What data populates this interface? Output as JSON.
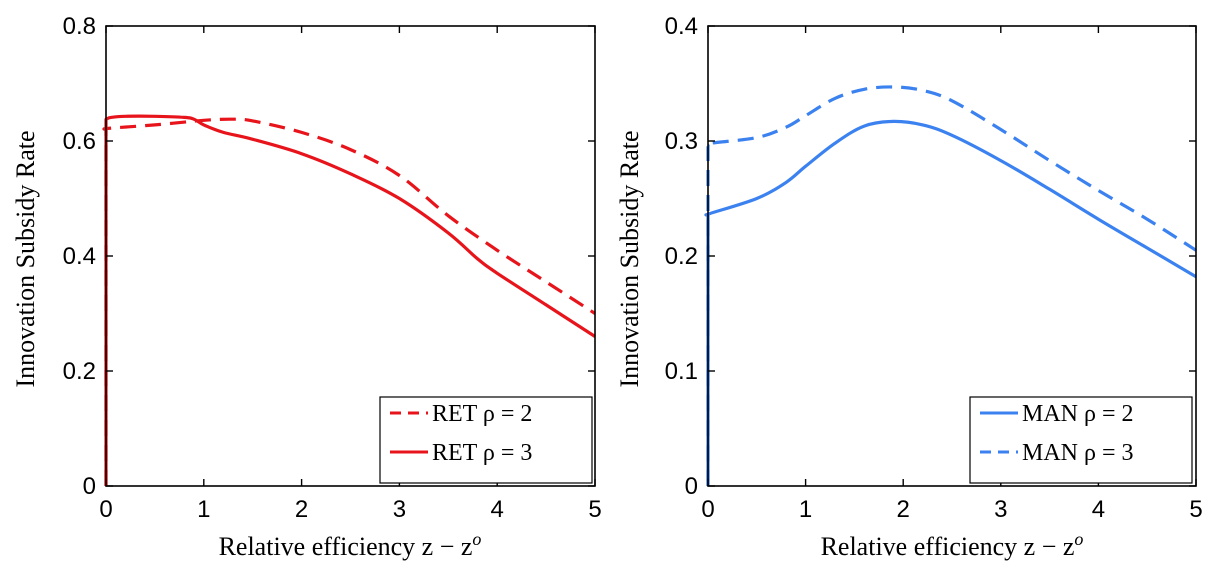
{
  "chart_data": [
    {
      "type": "line",
      "ylabel": "Innovation Subsidy Rate",
      "xlabel": "Relative efficiency z − z",
      "xlabel_sup": "o",
      "xlim": [
        0,
        5
      ],
      "ylim": [
        0,
        0.8
      ],
      "xticks": [
        "0",
        "1",
        "2",
        "3",
        "4",
        "5"
      ],
      "yticks": [
        "0",
        "0.2",
        "0.4",
        "0.6",
        "0.8"
      ],
      "grid": false,
      "legend_position": "bottom-right",
      "series": [
        {
          "name": "RET ρ = 2",
          "color": "#e8141b",
          "style": "dashed",
          "x": [
            0,
            0,
            0.02,
            0.5,
            1.0,
            1.3,
            1.5,
            2.0,
            2.5,
            3.0,
            3.5,
            4.0,
            4.5,
            5.0
          ],
          "y": [
            0,
            0.62,
            0.622,
            0.628,
            0.636,
            0.638,
            0.635,
            0.615,
            0.585,
            0.54,
            0.47,
            0.41,
            0.355,
            0.3
          ]
        },
        {
          "name": "RET ρ = 3",
          "color": "#e8141b",
          "style": "solid",
          "x": [
            0,
            0,
            0.05,
            0.2,
            0.5,
            0.8,
            0.9,
            1.0,
            1.2,
            1.5,
            2.0,
            2.5,
            3.0,
            3.5,
            3.8,
            4.0,
            4.5,
            5.0
          ],
          "y": [
            0,
            0.638,
            0.641,
            0.643,
            0.643,
            0.641,
            0.638,
            0.628,
            0.615,
            0.603,
            0.578,
            0.543,
            0.5,
            0.44,
            0.395,
            0.37,
            0.315,
            0.26
          ]
        }
      ]
    },
    {
      "type": "line",
      "ylabel": "Innovation Subsidy Rate",
      "xlabel": "Relative efficiency z − z",
      "xlabel_sup": "o",
      "xlim": [
        0,
        5
      ],
      "ylim": [
        0,
        0.4
      ],
      "xticks": [
        "0",
        "1",
        "2",
        "3",
        "4",
        "5"
      ],
      "yticks": [
        "0",
        "0.1",
        "0.2",
        "0.3",
        "0.4"
      ],
      "grid": false,
      "legend_position": "bottom-right",
      "series": [
        {
          "name": "MAN ρ = 2",
          "color": "#3b82f0",
          "style": "solid",
          "x": [
            0,
            0,
            0.02,
            0.5,
            0.8,
            1.0,
            1.3,
            1.6,
            1.9,
            2.2,
            2.5,
            3.0,
            3.5,
            4.0,
            4.5,
            5.0
          ],
          "y": [
            0,
            0.236,
            0.237,
            0.25,
            0.264,
            0.278,
            0.298,
            0.313,
            0.317,
            0.314,
            0.305,
            0.283,
            0.258,
            0.232,
            0.207,
            0.182
          ]
        },
        {
          "name": "MAN ρ = 3",
          "color": "#3b82f0",
          "style": "dashed",
          "x": [
            0,
            0,
            0.02,
            0.5,
            0.8,
            1.0,
            1.3,
            1.6,
            1.9,
            2.2,
            2.5,
            3.0,
            3.5,
            4.0,
            4.5,
            5.0
          ],
          "y": [
            0,
            0.296,
            0.298,
            0.303,
            0.312,
            0.322,
            0.337,
            0.345,
            0.347,
            0.344,
            0.335,
            0.31,
            0.283,
            0.257,
            0.232,
            0.205
          ]
        }
      ]
    }
  ]
}
